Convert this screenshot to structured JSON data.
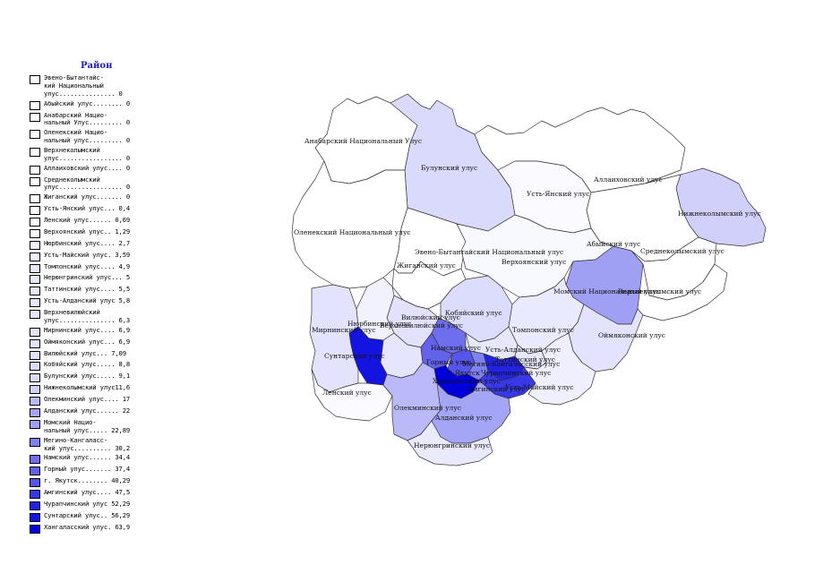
{
  "legend": {
    "title": "Район",
    "items": [
      {
        "text": "Эвено-Бытантайс-\nкий Национальный\nулус............... 0",
        "color": "#ffffff"
      },
      {
        "text": "Абыйский улус........ 0",
        "color": "#ffffff"
      },
      {
        "text": "Анабарский Нацио-\nнальный Улус......... 0",
        "color": "#ffffff"
      },
      {
        "text": "Оленекский Нацио-\nнальный улус......... 0",
        "color": "#ffffff"
      },
      {
        "text": "Верхнеколымский\nулус................. 0",
        "color": "#ffffff"
      },
      {
        "text": "Аллаиховский улус.... 0",
        "color": "#ffffff"
      },
      {
        "text": "Среднеколымский\nулус................. 0",
        "color": "#ffffff"
      },
      {
        "text": "Жиганский улус....... 0",
        "color": "#ffffff"
      },
      {
        "text": "Усть-Янский улус... 0,4",
        "color": "#fbfbff"
      },
      {
        "text": "Ленский улус...... 0,69",
        "color": "#fafaff"
      },
      {
        "text": "Верхоянский улус.. 1,29",
        "color": "#f8f8ff"
      },
      {
        "text": "Нюрбинский улус.... 2,7",
        "color": "#f2f2fe"
      },
      {
        "text": "Усть-Майский улус. 3,59",
        "color": "#efeffe"
      },
      {
        "text": "Томпонский улус.... 4,9",
        "color": "#eaeafe"
      },
      {
        "text": "Нерюнгринский улус... 5",
        "color": "#eaeafe"
      },
      {
        "text": "Таттинский улус.... 5,5",
        "color": "#e8e8fd"
      },
      {
        "text": "Усть-Алданский улус 5,8",
        "color": "#e7e7fd"
      },
      {
        "text": "Верхневилюйский\nулус............... 6,3",
        "color": "#e5e5fd"
      },
      {
        "text": "Мирнинский улус.... 6,9",
        "color": "#e3e3fd"
      },
      {
        "text": "Оймяконский улус... 6,9",
        "color": "#e3e3fd"
      },
      {
        "text": "Вилюйский улус... 7,09",
        "color": "#e2e2fd"
      },
      {
        "text": "Кобяйский улус..... 8,8",
        "color": "#dcdcfc"
      },
      {
        "text": "Булунский улус..... 9,1",
        "color": "#dadafc"
      },
      {
        "text": "Нижнеколымский улус11,6",
        "color": "#d0d0fb"
      },
      {
        "text": "Олекминский улус.... 17",
        "color": "#babaf8"
      },
      {
        "text": "Алданский улус...... 22",
        "color": "#a5a5f5"
      },
      {
        "text": "Момский Нацио-\nнальный улус..... 22,89",
        "color": "#9f9ff4"
      },
      {
        "text": "Мегино-Кангаласс-\nкий улус.......... 30,2",
        "color": "#8080f0"
      },
      {
        "text": "Намский улус...... 34,4",
        "color": "#6f6fed"
      },
      {
        "text": "Горный улус....... 37,4",
        "color": "#6262eb"
      },
      {
        "text": "г. Якутск........ 40,29",
        "color": "#5656ea"
      },
      {
        "text": "Амгинский улус.... 47,5",
        "color": "#3838e6"
      },
      {
        "text": "Чурапчинский улус 52,29",
        "color": "#2222e3"
      },
      {
        "text": "Сунтарский улус.. 56,29",
        "color": "#1414e1"
      },
      {
        "text": "Хангаласский улус. 63,9",
        "color": "#0000dd"
      }
    ]
  },
  "map": {
    "region_labels": [
      "Анабарский Национальный Улус",
      "Булунский улус",
      "Аллаиховский улус",
      "Усть-Янский улус",
      "Нижнеколымский улус",
      "Оленекский Национальный улус",
      "Эвено-Бытантайский Национальный улус",
      "Абыйский улус",
      "Среднеколымский улус",
      "Верхоянский улус",
      "Жиганский улус",
      "Момский Национальный улус",
      "Верхнеколымский улус",
      "Кобяйский улус",
      "Вилюйский улус",
      "Нюрбинский улус",
      "Верхневилюйский улус",
      "Мирнинский улус",
      "Томпонский улус",
      "Оймяконский улус",
      "Сунтарский улус",
      "Намский улус",
      "Горный улус",
      "Усть-Алданский улус",
      "Таттинский улус",
      "Чурапчинский улус",
      "г. Якутск",
      "Мегино-Кангаласский улус",
      "Хангаласский улус",
      "Амгинский улус",
      "Усть-Майский улус",
      "Ленский улус",
      "Олекминский улус",
      "Алданский улус",
      "Нерюнгринский улус"
    ]
  }
}
